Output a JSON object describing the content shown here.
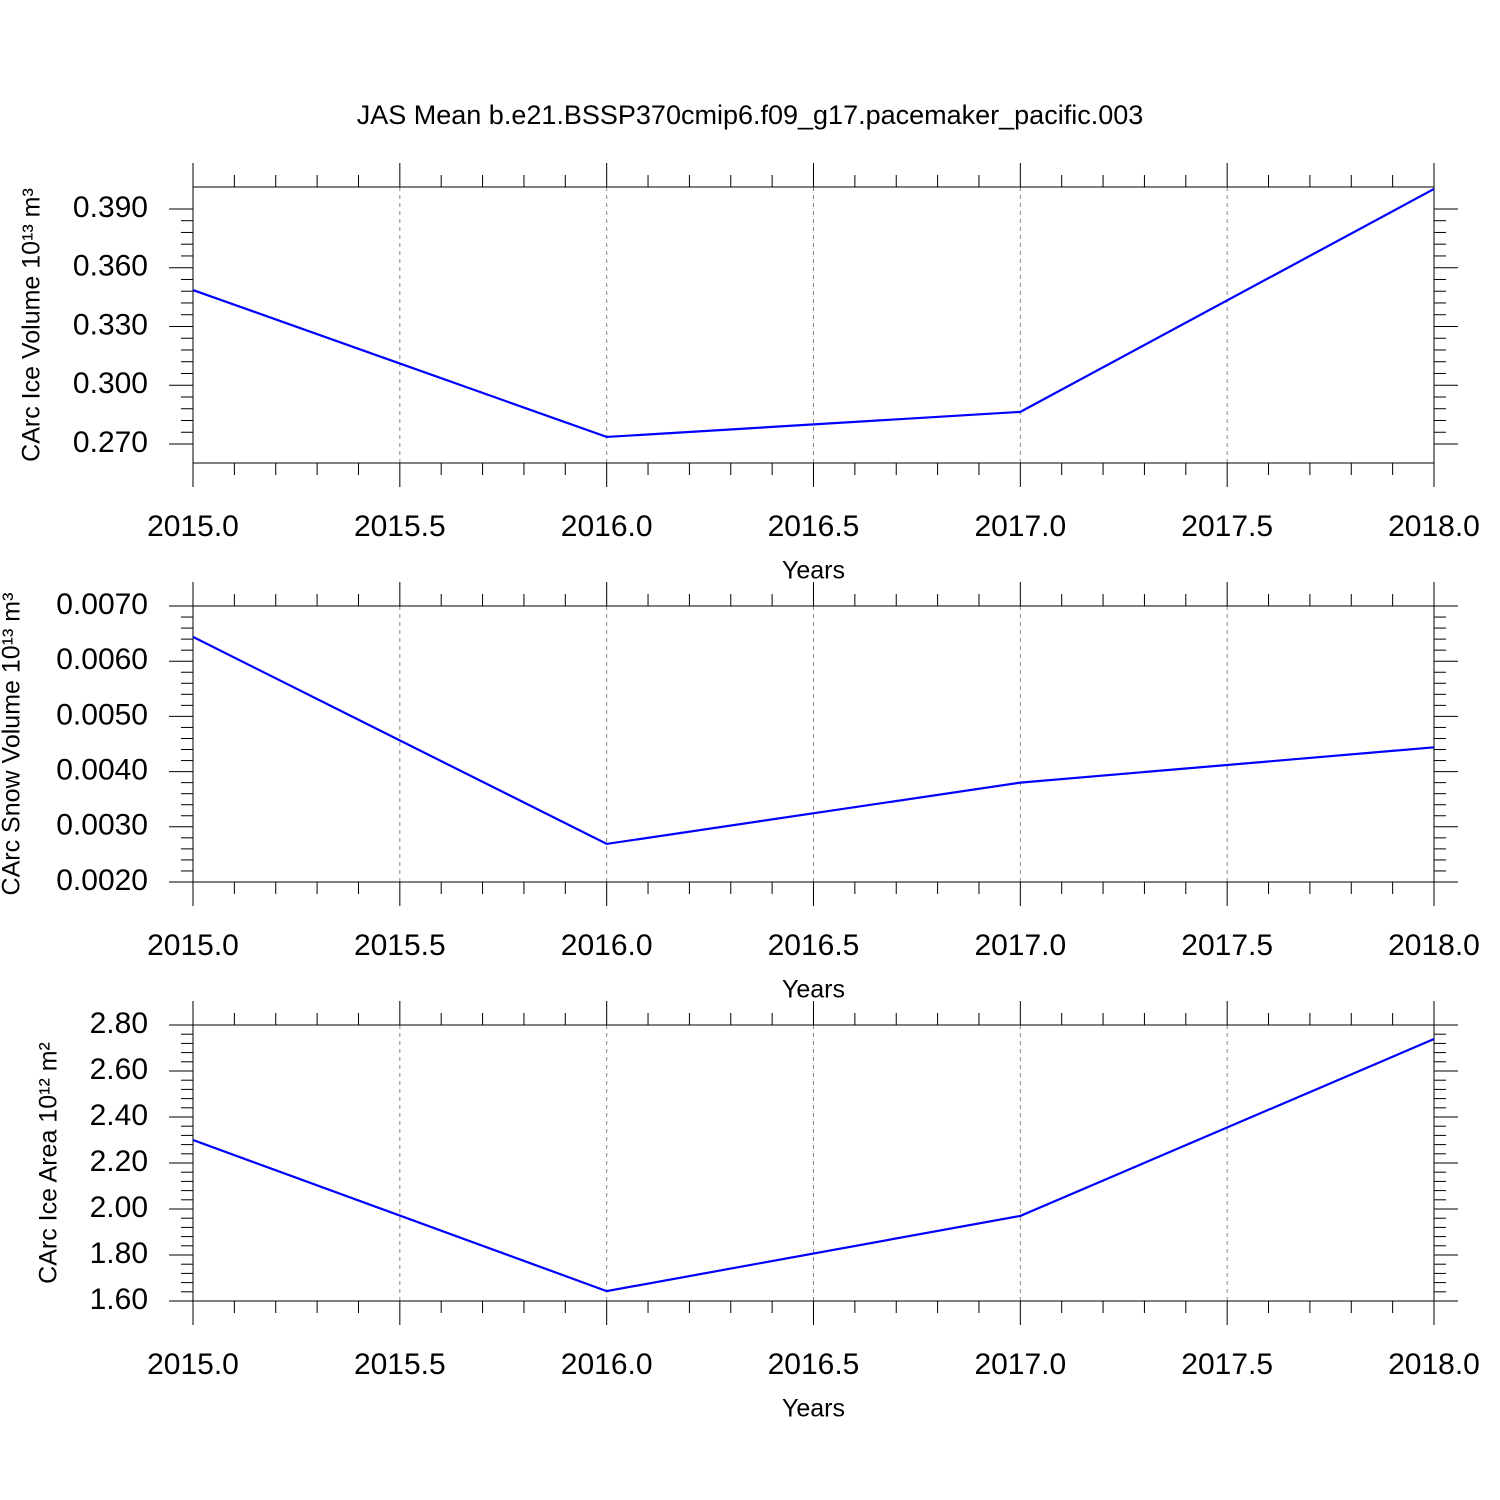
{
  "chart_data": [
    {
      "type": "line",
      "title": "JAS Mean b.e21.BSSP370cmip6.f09_g17.pacemaker_pacific.003",
      "xlabel": "Years",
      "ylabel": "CArc Ice Volume 10¹³ m³",
      "x": [
        2015,
        2016,
        2017,
        2018
      ],
      "series": [
        {
          "color": "#0000ff",
          "values": [
            0.3486,
            0.2736,
            0.2864,
            0.4002
          ]
        }
      ],
      "xlim": [
        2015,
        2018
      ],
      "xticks": [
        {
          "value": 2015,
          "label": "2015.0"
        },
        {
          "value": 2015.5,
          "label": "2015.5"
        },
        {
          "value": 2016,
          "label": "2016.0"
        },
        {
          "value": 2016.5,
          "label": "2016.5"
        },
        {
          "value": 2017,
          "label": "2017.0"
        },
        {
          "value": 2017.5,
          "label": "2017.5"
        },
        {
          "value": 2018,
          "label": "2018.0"
        }
      ],
      "ylim": [
        0.2603,
        0.4012
      ],
      "yticks": [
        {
          "value": 0.27,
          "label": "0.270"
        },
        {
          "value": 0.3,
          "label": "0.300"
        },
        {
          "value": 0.33,
          "label": "0.330"
        },
        {
          "value": 0.36,
          "label": "0.360"
        },
        {
          "value": 0.39,
          "label": "0.390"
        }
      ],
      "grid": "x"
    },
    {
      "type": "line",
      "xlabel": "Years",
      "ylabel": "CArc Snow Volume 10¹³ m³",
      "x": [
        2015,
        2016,
        2017,
        2018
      ],
      "series": [
        {
          "color": "#0000ff",
          "values": [
            0.00644,
            0.00269,
            0.0038,
            0.00444
          ]
        }
      ],
      "xlim": [
        2015,
        2018
      ],
      "xticks": [
        {
          "value": 2015,
          "label": "2015.0"
        },
        {
          "value": 2015.5,
          "label": "2015.5"
        },
        {
          "value": 2016,
          "label": "2016.0"
        },
        {
          "value": 2016.5,
          "label": "2016.5"
        },
        {
          "value": 2017,
          "label": "2017.0"
        },
        {
          "value": 2017.5,
          "label": "2017.5"
        },
        {
          "value": 2018,
          "label": "2018.0"
        }
      ],
      "ylim": [
        0.002,
        0.007
      ],
      "yticks": [
        {
          "value": 0.002,
          "label": "0.0020"
        },
        {
          "value": 0.003,
          "label": "0.0030"
        },
        {
          "value": 0.004,
          "label": "0.0040"
        },
        {
          "value": 0.005,
          "label": "0.0050"
        },
        {
          "value": 0.006,
          "label": "0.0060"
        },
        {
          "value": 0.007,
          "label": "0.0070"
        }
      ],
      "grid": "x"
    },
    {
      "type": "line",
      "xlabel": "Years",
      "ylabel": "CArc Ice Area 10¹² m²",
      "x": [
        2015,
        2016,
        2017,
        2018
      ],
      "series": [
        {
          "color": "#0000ff",
          "values": [
            2.3,
            1.643,
            1.97,
            2.739
          ]
        }
      ],
      "xlim": [
        2015,
        2018
      ],
      "xticks": [
        {
          "value": 2015,
          "label": "2015.0"
        },
        {
          "value": 2015.5,
          "label": "2015.5"
        },
        {
          "value": 2016,
          "label": "2016.0"
        },
        {
          "value": 2016.5,
          "label": "2016.5"
        },
        {
          "value": 2017,
          "label": "2017.0"
        },
        {
          "value": 2017.5,
          "label": "2017.5"
        },
        {
          "value": 2018,
          "label": "2018.0"
        }
      ],
      "ylim": [
        1.6,
        2.8
      ],
      "yticks": [
        {
          "value": 1.6,
          "label": "1.60"
        },
        {
          "value": 1.8,
          "label": "1.80"
        },
        {
          "value": 2.0,
          "label": "2.00"
        },
        {
          "value": 2.2,
          "label": "2.20"
        },
        {
          "value": 2.4,
          "label": "2.40"
        },
        {
          "value": 2.6,
          "label": "2.60"
        },
        {
          "value": 2.8,
          "label": "2.80"
        }
      ],
      "grid": "x"
    }
  ]
}
